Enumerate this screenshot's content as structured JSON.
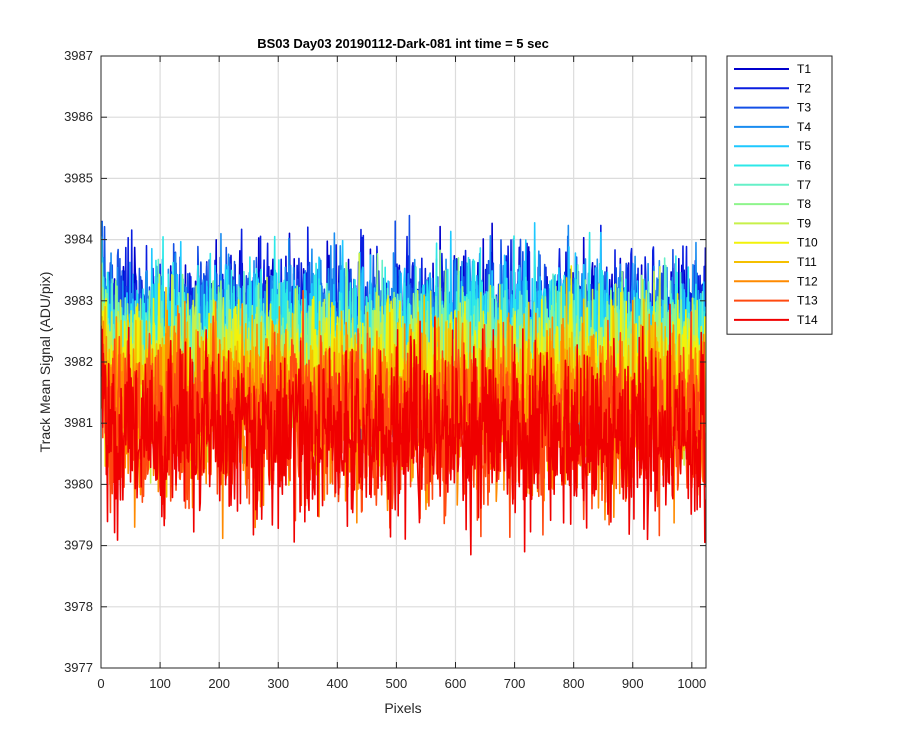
{
  "chart_data": {
    "type": "line",
    "title": "BS03 Day03 20190112-Dark-081 int time = 5 sec",
    "xlabel": "Pixels",
    "ylabel": "Track Mean Signal (ADU/pix)",
    "xlim": [
      0,
      1024
    ],
    "ylim": [
      3977,
      3987
    ],
    "xticks": [
      0,
      100,
      200,
      300,
      400,
      500,
      600,
      700,
      800,
      900,
      1000
    ],
    "yticks": [
      3977,
      3978,
      3979,
      3980,
      3981,
      3982,
      3983,
      3984,
      3985,
      3986,
      3987
    ],
    "grid": true,
    "legend_position": "outside-right",
    "n_points_per_series": 1024,
    "series": [
      {
        "name": "T1",
        "color": "#0000cc",
        "mean": 3982.5,
        "amplitude": 1.1
      },
      {
        "name": "T2",
        "color": "#0a1ee0",
        "mean": 3982.5,
        "amplitude": 1.1
      },
      {
        "name": "T3",
        "color": "#1450e6",
        "mean": 3982.4,
        "amplitude": 1.1
      },
      {
        "name": "T4",
        "color": "#1a8cf0",
        "mean": 3982.4,
        "amplitude": 1.1
      },
      {
        "name": "T5",
        "color": "#1ec8ff",
        "mean": 3982.3,
        "amplitude": 1.1
      },
      {
        "name": "T6",
        "color": "#2ce8e8",
        "mean": 3982.2,
        "amplitude": 1.1
      },
      {
        "name": "T7",
        "color": "#66f0c8",
        "mean": 3982.0,
        "amplitude": 1.1
      },
      {
        "name": "T8",
        "color": "#8ef58c",
        "mean": 3981.9,
        "amplitude": 1.1
      },
      {
        "name": "T9",
        "color": "#c8f04a",
        "mean": 3981.8,
        "amplitude": 1.1
      },
      {
        "name": "T10",
        "color": "#f2f20a",
        "mean": 3981.6,
        "amplitude": 1.1
      },
      {
        "name": "T11",
        "color": "#f5c000",
        "mean": 3981.4,
        "amplitude": 1.1
      },
      {
        "name": "T12",
        "color": "#ff8a00",
        "mean": 3981.2,
        "amplitude": 1.2
      },
      {
        "name": "T13",
        "color": "#ff4a10",
        "mean": 3981.0,
        "amplitude": 1.2
      },
      {
        "name": "T14",
        "color": "#f00000",
        "mean": 3980.8,
        "amplitude": 1.2
      }
    ]
  }
}
